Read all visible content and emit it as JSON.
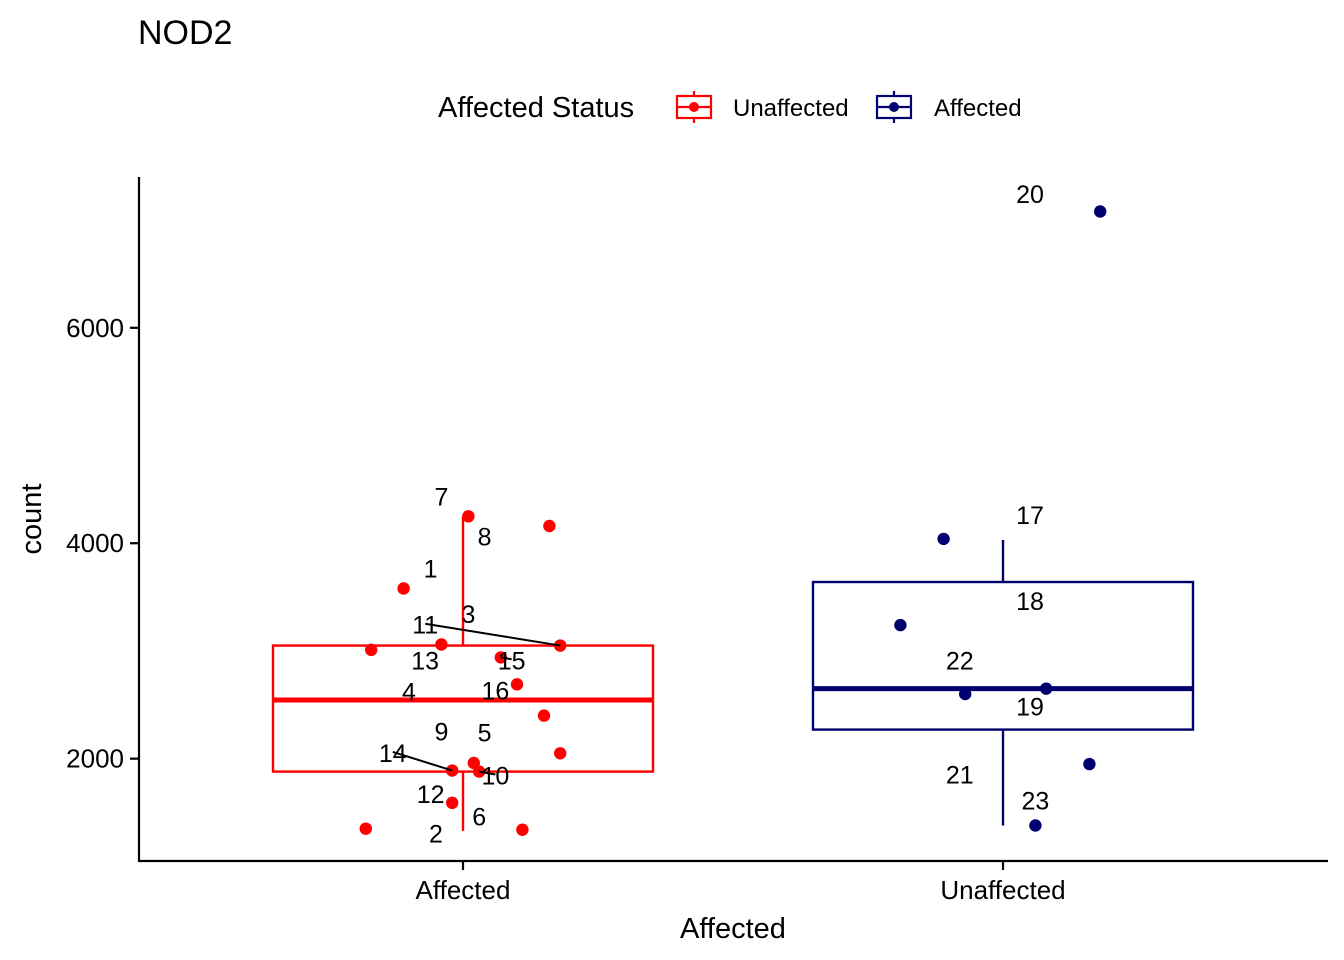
{
  "chart_data": {
    "type": "box",
    "title": "NOD2",
    "xlabel": "Affected",
    "ylabel": "count",
    "ylim": [
      1050,
      7400
    ],
    "yticks": [
      2000,
      4000,
      6000
    ],
    "categories": [
      "Affected",
      "Unaffected"
    ],
    "legend": {
      "title": "Affected Status",
      "position": "top",
      "entries": [
        {
          "label": "Unaffected",
          "color": "#FF0000"
        },
        {
          "label": "Affected",
          "color": "#000070"
        }
      ]
    },
    "boxes": [
      {
        "category": "Affected",
        "color": "#FF0000",
        "whisker_low": 1330,
        "q1": 1880,
        "median": 2545,
        "q3": 3050,
        "whisker_high": 4250
      },
      {
        "category": "Unaffected",
        "color": "#000070",
        "whisker_low": 1380,
        "q1": 2270,
        "median": 2650,
        "q3": 3640,
        "whisker_high": 4030
      }
    ],
    "points": [
      {
        "id": "1",
        "group": 0,
        "x": 0.89,
        "y": 3580,
        "label_dx": 0.05,
        "label_dy": 100
      },
      {
        "id": "2",
        "group": 0,
        "x": 0.82,
        "y": 1350,
        "label_dx": 0.13,
        "label_dy": -130
      },
      {
        "id": "3",
        "group": 0,
        "x": 0.96,
        "y": 3060,
        "label_dx": 0.05,
        "label_dy": 200
      },
      {
        "id": "4",
        "group": 0,
        "x": 1.1,
        "y": 2690,
        "label_dx": -0.2,
        "label_dy": -150
      },
      {
        "id": "5",
        "group": 0,
        "x": 1.02,
        "y": 1960,
        "label_dx": 0.02,
        "label_dy": 200
      },
      {
        "id": "6",
        "group": 0,
        "x": 1.11,
        "y": 1340,
        "label_dx": -0.08,
        "label_dy": 40
      },
      {
        "id": "7",
        "group": 0,
        "x": 1.01,
        "y": 4250,
        "label_dx": -0.05,
        "label_dy": 100
      },
      {
        "id": "8",
        "group": 0,
        "x": 1.16,
        "y": 4160,
        "label_dx": -0.12,
        "label_dy": -180
      },
      {
        "id": "9",
        "group": 0,
        "x": 1.18,
        "y": 2050,
        "label_dx": -0.22,
        "label_dy": 120
      },
      {
        "id": "10",
        "group": 0,
        "x": 1.03,
        "y": 1880,
        "label_dx": 0.03,
        "label_dy": -120,
        "leader": true
      },
      {
        "id": "11",
        "group": 0,
        "x": 1.18,
        "y": 3050,
        "label_dx": -0.25,
        "label_dy": 110,
        "leader": true
      },
      {
        "id": "12",
        "group": 0,
        "x": 0.98,
        "y": 1590,
        "label_dx": -0.04,
        "label_dy": 0
      },
      {
        "id": "13",
        "group": 0,
        "x": 0.83,
        "y": 3010,
        "label_dx": 0.1,
        "label_dy": -180
      },
      {
        "id": "14",
        "group": 0,
        "x": 0.98,
        "y": 1890,
        "label_dx": -0.11,
        "label_dy": 80,
        "leader": true
      },
      {
        "id": "15",
        "group": 0,
        "x": 1.07,
        "y": 2940,
        "label_dx": 0.02,
        "label_dy": -110,
        "leader": true
      },
      {
        "id": "16",
        "group": 0,
        "x": 1.15,
        "y": 2400,
        "label_dx": -0.09,
        "label_dy": 150
      },
      {
        "id": "17",
        "group": 1,
        "x": 1.89,
        "y": 4040,
        "label_dx": 0.16,
        "label_dy": 140
      },
      {
        "id": "18",
        "group": 1,
        "x": 1.81,
        "y": 3240,
        "label_dx": 0.24,
        "label_dy": 140
      },
      {
        "id": "19",
        "group": 1,
        "x": 2.08,
        "y": 2650,
        "label_dx": -0.03,
        "label_dy": -250
      },
      {
        "id": "20",
        "group": 1,
        "x": 2.18,
        "y": 7080,
        "label_dx": -0.13,
        "label_dy": 80
      },
      {
        "id": "21",
        "group": 1,
        "x": 2.16,
        "y": 1950,
        "label_dx": -0.24,
        "label_dy": -180
      },
      {
        "id": "22",
        "group": 1,
        "x": 1.93,
        "y": 2600,
        "label_dx": -0.01,
        "label_dy": 230
      },
      {
        "id": "23",
        "group": 1,
        "x": 2.06,
        "y": 1380,
        "label_dx": 0.0,
        "label_dy": 150
      }
    ]
  }
}
